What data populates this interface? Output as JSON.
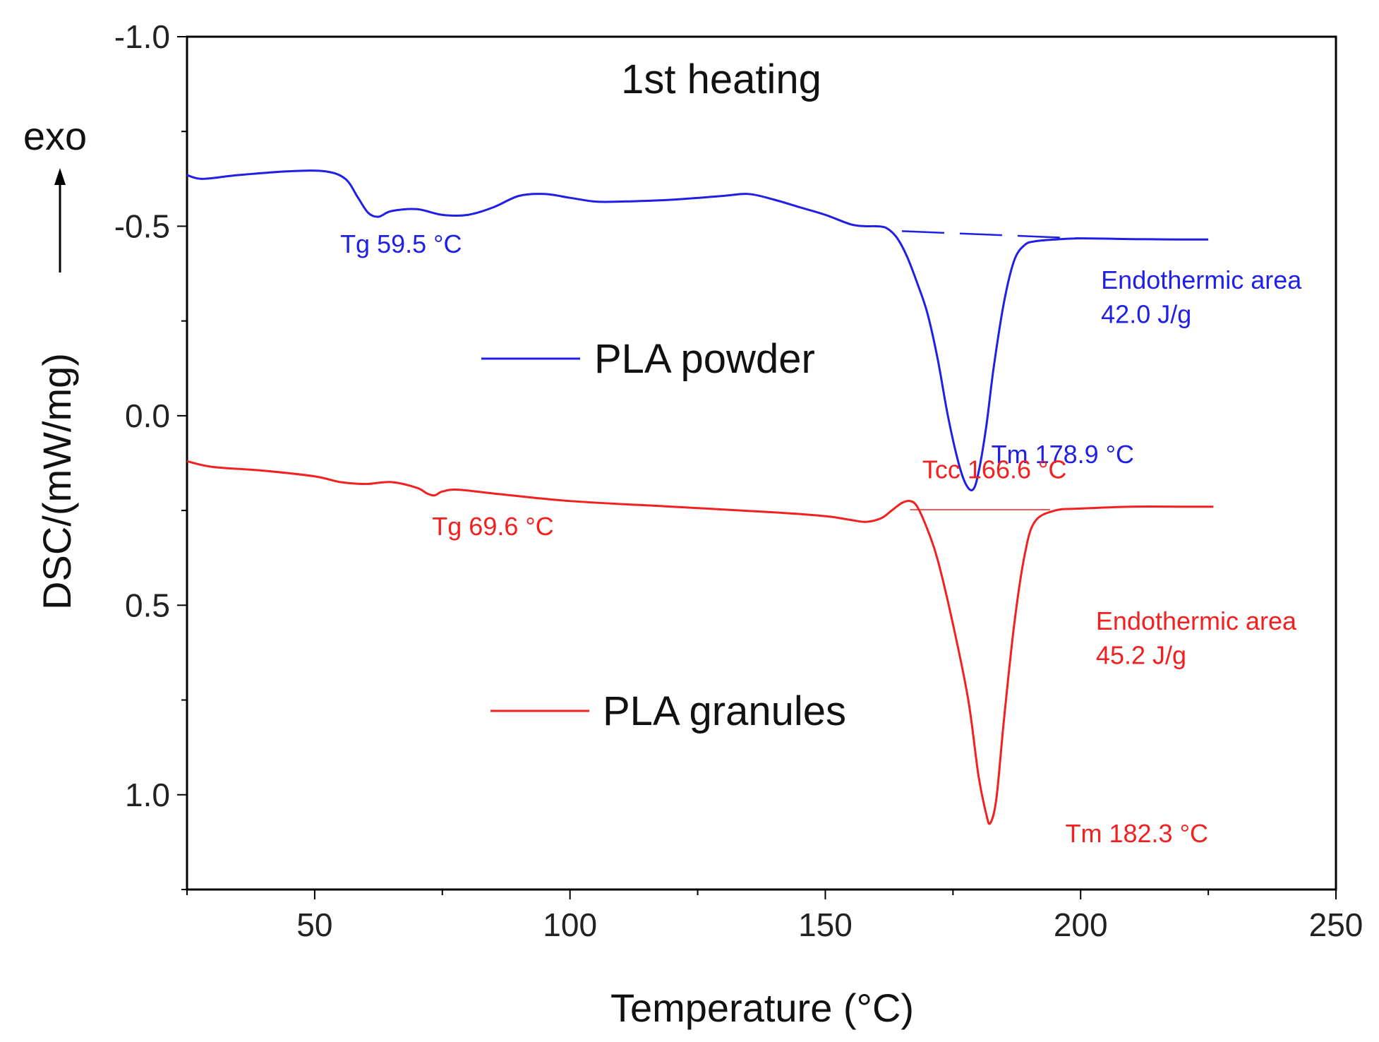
{
  "chart_data": {
    "type": "line",
    "title": "1st heating",
    "xlabel": "Temperature (°C)",
    "ylabel": "DSC/(mW/mg)",
    "xlim": [
      25,
      250
    ],
    "ylim": [
      -1.0,
      1.25
    ],
    "y_inverted": true,
    "x_ticks": [
      50,
      100,
      150,
      200,
      250
    ],
    "y_ticks": [
      -1.0,
      -0.5,
      0.0,
      0.5,
      1.0
    ],
    "y_tick_labels": [
      "-1.0",
      "-0.5",
      "0.0",
      "0.5",
      "1.0"
    ],
    "exo_label": "exo",
    "series": [
      {
        "name": "PLA powder",
        "color": "#1f1fe6",
        "x": [
          25,
          28,
          35,
          45,
          52,
          56,
          58.5,
          60.5,
          62.5,
          65,
          70,
          75,
          80,
          85,
          90,
          95,
          100,
          105,
          110,
          120,
          130,
          135,
          140,
          145,
          150,
          155,
          158,
          160,
          162,
          164,
          166,
          168,
          170,
          172,
          174,
          176,
          177.5,
          178.9,
          180,
          181.5,
          183,
          185,
          187,
          189,
          191,
          195,
          200,
          210,
          220,
          225
        ],
        "y": [
          -0.635,
          -0.625,
          -0.635,
          -0.645,
          -0.645,
          -0.625,
          -0.575,
          -0.535,
          -0.525,
          -0.54,
          -0.545,
          -0.53,
          -0.53,
          -0.55,
          -0.58,
          -0.585,
          -0.575,
          -0.565,
          -0.565,
          -0.57,
          -0.58,
          -0.585,
          -0.57,
          -0.55,
          -0.53,
          -0.505,
          -0.5,
          -0.5,
          -0.495,
          -0.47,
          -0.42,
          -0.35,
          -0.27,
          -0.15,
          0.0,
          0.12,
          0.18,
          0.195,
          0.15,
          0.03,
          -0.13,
          -0.3,
          -0.41,
          -0.45,
          -0.46,
          -0.465,
          -0.468,
          -0.466,
          -0.465,
          -0.465
        ]
      },
      {
        "name": "PLA granules",
        "color": "#f22020",
        "x": [
          25,
          30,
          40,
          50,
          55,
          60,
          65,
          70,
          72,
          73.5,
          75,
          78,
          85,
          100,
          120,
          140,
          150,
          155,
          158,
          161,
          163,
          165,
          166.6,
          168,
          170,
          172,
          175,
          178,
          180,
          181.5,
          182.3,
          183.5,
          185,
          187,
          189,
          191,
          195,
          200,
          210,
          220,
          226
        ],
        "y": [
          0.12,
          0.135,
          0.145,
          0.16,
          0.175,
          0.18,
          0.175,
          0.19,
          0.205,
          0.21,
          0.2,
          0.195,
          0.205,
          0.225,
          0.24,
          0.255,
          0.265,
          0.275,
          0.28,
          0.27,
          0.25,
          0.23,
          0.225,
          0.24,
          0.3,
          0.38,
          0.55,
          0.75,
          0.95,
          1.05,
          1.075,
          1.01,
          0.8,
          0.55,
          0.37,
          0.28,
          0.25,
          0.245,
          0.24,
          0.24,
          0.24
        ]
      }
    ],
    "baselines": [
      {
        "series": "PLA powder",
        "style": "dashed",
        "x": [
          165,
          200
        ],
        "y": [
          -0.487,
          -0.468
        ]
      },
      {
        "series": "PLA granules",
        "style": "solid-thin",
        "x": [
          166.6,
          194
        ],
        "y": [
          0.248,
          0.248
        ]
      }
    ],
    "legend": [
      {
        "label": "PLA powder",
        "color": "#1f1fe6"
      },
      {
        "label": "PLA granules",
        "color": "#f22020"
      }
    ],
    "annotations": [
      {
        "text": "Tg 59.5 °C",
        "color": "#1f1fe6",
        "x": 55,
        "y": -0.43
      },
      {
        "text": "Endothermic area",
        "color": "#1f1fe6",
        "x": 204,
        "y": -0.335
      },
      {
        "text": "42.0 J/g",
        "color": "#1f1fe6",
        "x": 204,
        "y": -0.245
      },
      {
        "text": "Tm 178.9 °C",
        "color": "#1f1fe6",
        "x": 182.5,
        "y": 0.125
      },
      {
        "text": "Tcc 166.6 °C",
        "color": "#f22020",
        "x": 169,
        "y": 0.165
      },
      {
        "text": "Tg 69.6 °C",
        "color": "#f22020",
        "x": 73,
        "y": 0.315
      },
      {
        "text": "Endothermic area",
        "color": "#f22020",
        "x": 203,
        "y": 0.565
      },
      {
        "text": "45.2 J/g",
        "color": "#f22020",
        "x": 203,
        "y": 0.655
      },
      {
        "text": "Tm 182.3 °C",
        "color": "#f22020",
        "x": 197,
        "y": 1.125
      }
    ]
  }
}
